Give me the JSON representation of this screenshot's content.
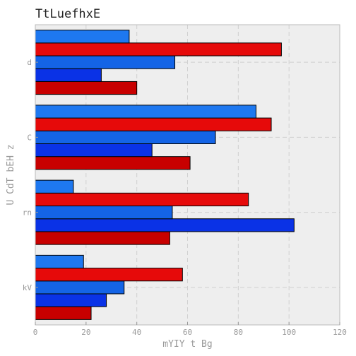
{
  "chart_data": {
    "type": "bar",
    "orientation": "horizontal",
    "title": "TtLuefhxE",
    "xlabel": "mYIY t Bg",
    "ylabel": "U CdT bEH z",
    "categories": [
      "kV",
      "rn",
      "C",
      "d"
    ],
    "xlim": [
      0,
      120
    ],
    "xticks": [
      0,
      20,
      40,
      60,
      80,
      100,
      120
    ],
    "grid": true,
    "series": [
      {
        "color": "#c80000",
        "values": [
          22,
          53,
          61,
          40
        ]
      },
      {
        "color": "#0a32e6",
        "values": [
          28,
          102,
          46,
          26
        ]
      },
      {
        "color": "#1464e6",
        "values": [
          35,
          54,
          71,
          55
        ]
      },
      {
        "color": "#e60a0a",
        "values": [
          58,
          84,
          93,
          97
        ]
      },
      {
        "color": "#1e78f0",
        "values": [
          19,
          15,
          87,
          37
        ]
      }
    ]
  },
  "colors": {
    "plot_background": "#eeeeee",
    "grid": "#d0d0d0",
    "axis_text": "#999999",
    "title_text": "#222222"
  }
}
